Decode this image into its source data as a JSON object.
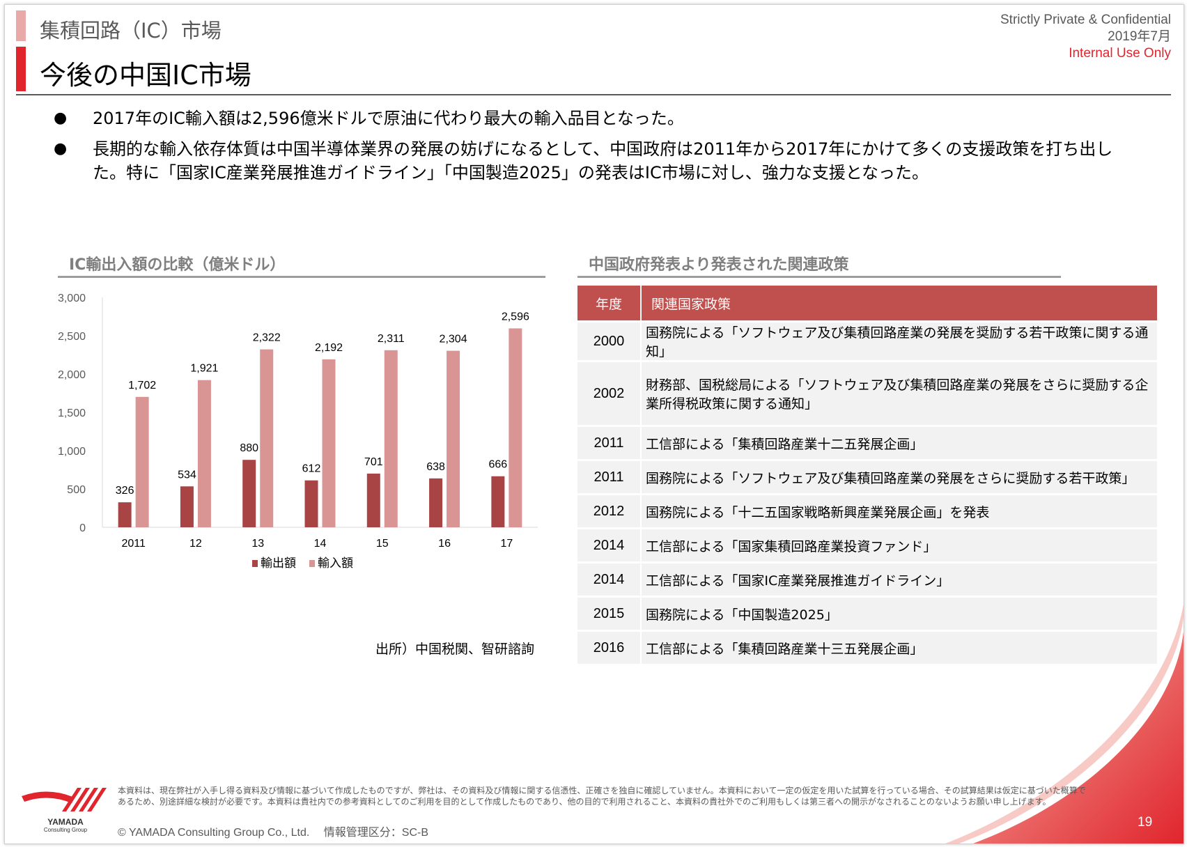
{
  "header": {
    "section_title": "集積回路（IC）市場",
    "main_title": "今後の中国IC市場",
    "confidential": "Strictly Private & Confidential",
    "date": "2019年7月",
    "internal": "Internal Use Only"
  },
  "bullets": [
    "2017年のIC輸入額は2,596億米ドルで原油に代わり最大の輸入品目となった。",
    "長期的な輸入依存体質は中国半導体業界の発展の妨げになるとして、中国政府は2011年から2017年にかけて多くの支援政策を打ち出した。特に「国家IC産業発展推進ガイドライン」「中国製造2025」の発表はIC市場に対し、強力な支援となった。"
  ],
  "chart_title": "IC輸出入額の比較（億米ドル）",
  "chart_source": "出所）中国税関、智研諮詢",
  "chart_data": {
    "type": "bar",
    "categories": [
      "2011",
      "12",
      "13",
      "14",
      "15",
      "16",
      "17"
    ],
    "series": [
      {
        "name": "輸出額",
        "color": "#a84444",
        "values": [
          326,
          534,
          880,
          612,
          701,
          638,
          666
        ],
        "labels": [
          "326",
          "534",
          "880",
          "612",
          "701",
          "638",
          "666"
        ]
      },
      {
        "name": "輸入額",
        "color": "#d99594",
        "values": [
          1702,
          1921,
          2322,
          2192,
          2311,
          2304,
          2596
        ],
        "labels": [
          "1,702",
          "1,921",
          "2,322",
          "2,192",
          "2,311",
          "2,304",
          "2,596"
        ]
      }
    ],
    "ylim": [
      0,
      3000
    ],
    "yticks": [
      0,
      500,
      1000,
      1500,
      2000,
      2500,
      3000
    ],
    "ytick_labels": [
      "0",
      "500",
      "1,000",
      "1,500",
      "2,000",
      "2,500",
      "3,000"
    ],
    "legend_position": "bottom"
  },
  "policy_table": {
    "title": "中国政府発表より発表された関連政策",
    "headers": [
      "年度",
      "関連国家政策"
    ],
    "rows": [
      {
        "year": "2000",
        "policy": "国務院による「ソフトウェア及び集積回路産業の発展を奨励する若干政策に関する通知」"
      },
      {
        "year": "2002",
        "policy": "財務部、国税総局による「ソフトウェア及び集積回路産業の発展をさらに奨励する企業所得税政策に関する通知」"
      },
      {
        "year": "2011",
        "policy": "工信部による「集積回路産業十二五発展企画」"
      },
      {
        "year": "2011",
        "policy": "国務院による「ソフトウェア及び集積回路産業の発展をさらに奨励する若干政策」"
      },
      {
        "year": "2012",
        "policy": "国務院による「十二五国家戦略新興産業発展企画」を発表"
      },
      {
        "year": "2014",
        "policy": "工信部による「国家集積回路産業投資ファンド」"
      },
      {
        "year": "2014",
        "policy": "工信部による「国家IC産業発展推進ガイドライン」"
      },
      {
        "year": "2015",
        "policy": "国務院による「中国製造2025」"
      },
      {
        "year": "2016",
        "policy": "工信部による「集積回路産業十三五発展企画」"
      }
    ]
  },
  "footer": {
    "logo_name": "YAMADA",
    "logo_sub": "Consulting Group",
    "disclaimer": "本資料は、現在弊社が入手し得る資料及び情報に基づいて作成したものですが、弊社は、その資料及び情報に関する信憑性、正確さを独自に確認していません。本資料において一定の仮定を用いた試算を行っている場合、その試算結果は仮定に基づいた概算であるため、別途詳細な検討が必要です。本資料は貴社内での参考資料としてのご利用を目的として作成したものであり、他の目的で利用されること、本資料の貴社外でのご利用もしくは第三者への開示がなされることのないようお願い申し上げます。",
    "copyright": "© YAMADA Consulting Group Co., Ltd.　 情報管理区分：SC-B",
    "page_number": "19"
  }
}
